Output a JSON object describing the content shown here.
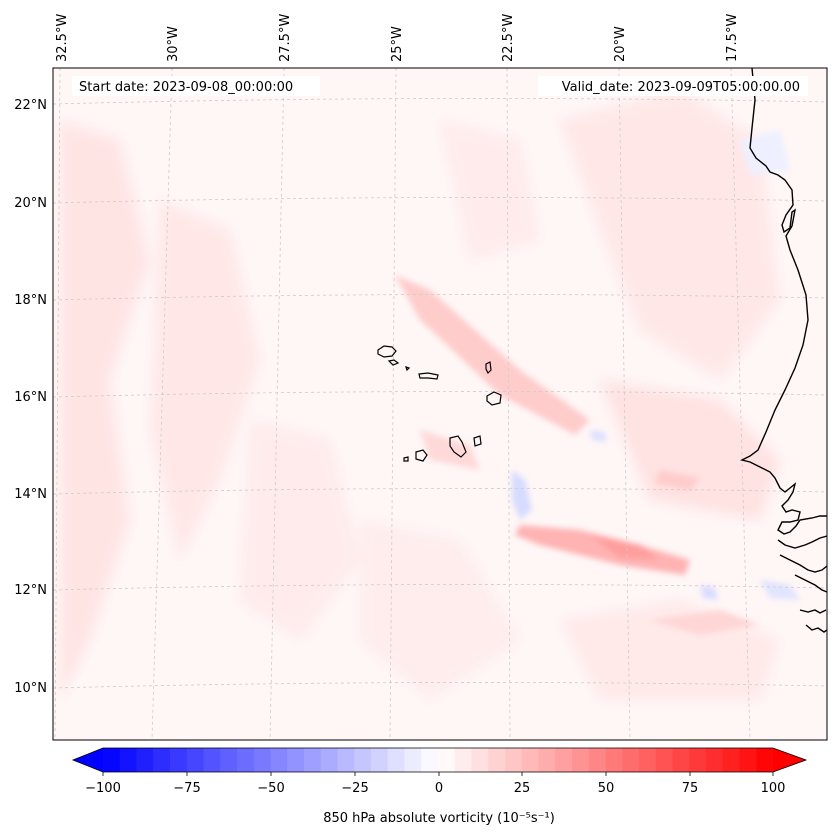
{
  "map": {
    "start_date_label": "Start date: 2023-09-08_00:00:00",
    "valid_date_label": "Valid_date: 2023-09-09T05:00:00.00",
    "lon_labels": [
      "32.5°W",
      "30°W",
      "27.5°W",
      "25°W",
      "22.5°W",
      "20°W",
      "17.5°W"
    ],
    "lat_labels": [
      "22°N",
      "20°N",
      "18°N",
      "16°N",
      "14°N",
      "12°N",
      "10°N"
    ]
  },
  "colorbar": {
    "tick_labels": [
      "−100",
      "−75",
      "−50",
      "−25",
      "0",
      "25",
      "50",
      "75",
      "100"
    ],
    "label": "850 hPa absolute vorticity (10⁻⁵s⁻¹)",
    "min": -100,
    "max": 100,
    "n_levels": 40,
    "negative_color": "#0000ff",
    "positive_color": "#ff0000"
  },
  "colors": {
    "background_field": "#fff6f6",
    "coastline": "#000000",
    "gridline": "#cccccc"
  }
}
